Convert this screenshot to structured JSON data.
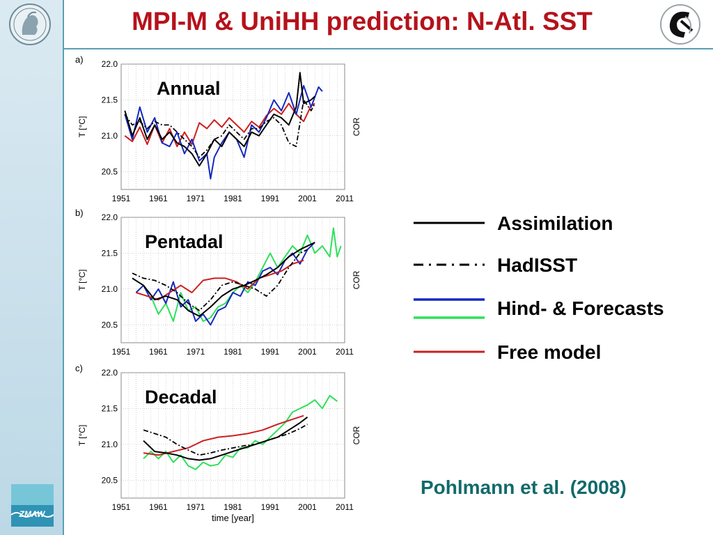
{
  "slide": {
    "title": "MPI-M & UniHH prediction: N-Atl. SST",
    "citation": "Pohlmann et al. (2008)"
  },
  "legend": [
    {
      "label": "Assimilation",
      "style": "solid",
      "colors": [
        "#000000"
      ]
    },
    {
      "label": "HadISST",
      "style": "dashdot",
      "colors": [
        "#000000"
      ]
    },
    {
      "label": "Hind- & Forecasts",
      "style": "solid",
      "colors": [
        "#1528c0",
        "#2ee05a"
      ]
    },
    {
      "label": "Free model",
      "style": "solid",
      "colors": [
        "#cc1f1f"
      ]
    }
  ],
  "logos": {
    "left": "mpg-minerva-logo",
    "right": "institute-logo",
    "bottom": "zmaw-logo",
    "bottom_text": "ZMAW"
  },
  "chart_data": [
    {
      "type": "line",
      "panel": "a)",
      "title": "Annual",
      "xlabel": "",
      "ylabel": "T [°C]",
      "y2label": "COR",
      "xlim": [
        1951,
        2011
      ],
      "ylim": [
        20.25,
        22.0
      ],
      "xticks": [
        "1951",
        "1961",
        "1971",
        "1981",
        "1991",
        "2001",
        "2011"
      ],
      "yticks": [
        "22.0",
        "21.5",
        "21.0",
        "20.5"
      ],
      "series": [
        {
          "name": "Free model",
          "color": "#cc1f1f",
          "style": "solid",
          "x": [
            1952,
            1954,
            1956,
            1958,
            1960,
            1962,
            1964,
            1966,
            1968,
            1970,
            1972,
            1974,
            1976,
            1978,
            1980,
            1982,
            1984,
            1986,
            1988,
            1990,
            1992,
            1994,
            1996,
            1998,
            2000,
            2002,
            2003
          ],
          "y": [
            21.0,
            20.92,
            21.12,
            20.88,
            21.15,
            20.9,
            21.1,
            20.85,
            21.05,
            20.88,
            21.18,
            21.1,
            21.22,
            21.12,
            21.25,
            21.15,
            21.05,
            21.2,
            21.12,
            21.28,
            21.38,
            21.3,
            21.45,
            21.3,
            21.2,
            21.42,
            21.45
          ]
        },
        {
          "name": "Hindcast",
          "color": "#1528c0",
          "style": "solid",
          "x": [
            1952,
            1954,
            1956,
            1958,
            1960,
            1962,
            1964,
            1966,
            1968,
            1970,
            1972,
            1974,
            1975,
            1976,
            1978,
            1980,
            1982,
            1984,
            1986,
            1988,
            1990,
            1992,
            1994,
            1996,
            1998,
            2000,
            2002,
            2004,
            2005
          ],
          "y": [
            21.3,
            20.95,
            21.4,
            21.05,
            21.25,
            20.9,
            20.85,
            21.05,
            20.75,
            20.95,
            20.65,
            20.75,
            20.4,
            20.7,
            20.9,
            21.05,
            20.95,
            20.7,
            21.15,
            21.05,
            21.25,
            21.5,
            21.35,
            21.6,
            21.3,
            21.7,
            21.4,
            21.68,
            21.62
          ]
        },
        {
          "name": "Assimilation",
          "color": "#000000",
          "style": "solid",
          "x": [
            1952,
            1954,
            1956,
            1958,
            1960,
            1962,
            1964,
            1966,
            1968,
            1970,
            1972,
            1974,
            1976,
            1978,
            1980,
            1982,
            1984,
            1986,
            1988,
            1990,
            1992,
            1994,
            1996,
            1998,
            1999,
            2000,
            2002,
            2003
          ],
          "y": [
            21.35,
            21.0,
            21.25,
            20.95,
            21.15,
            20.95,
            21.05,
            20.9,
            20.85,
            20.75,
            20.58,
            20.75,
            20.95,
            20.85,
            21.05,
            20.95,
            20.85,
            21.05,
            21.0,
            21.15,
            21.3,
            21.25,
            21.15,
            21.4,
            21.88,
            21.45,
            21.5,
            21.55
          ]
        },
        {
          "name": "HadISST",
          "color": "#000000",
          "style": "dashdot",
          "x": [
            1952,
            1954,
            1956,
            1958,
            1960,
            1962,
            1964,
            1966,
            1968,
            1970,
            1972,
            1974,
            1976,
            1978,
            1980,
            1982,
            1984,
            1986,
            1988,
            1990,
            1992,
            1994,
            1996,
            1998,
            2000,
            2002,
            2003
          ],
          "y": [
            21.3,
            21.15,
            21.2,
            21.1,
            21.2,
            21.15,
            21.15,
            21.05,
            20.95,
            20.85,
            20.7,
            20.8,
            20.95,
            21.0,
            21.15,
            21.05,
            20.95,
            21.1,
            21.1,
            21.2,
            21.25,
            21.15,
            20.9,
            20.85,
            21.5,
            21.35,
            21.45
          ]
        }
      ]
    },
    {
      "type": "line",
      "panel": "b)",
      "title": "Pentadal",
      "xlabel": "",
      "ylabel": "T [°C]",
      "y2label": "COR",
      "xlim": [
        1951,
        2011
      ],
      "ylim": [
        20.25,
        22.0
      ],
      "xticks": [
        "1951",
        "1961",
        "1971",
        "1981",
        "1991",
        "2001",
        "2011"
      ],
      "yticks": [
        "22.0",
        "21.5",
        "21.0",
        "20.5"
      ],
      "series": [
        {
          "name": "Forecast",
          "color": "#2ee05a",
          "style": "solid",
          "x": [
            1959,
            1961,
            1963,
            1965,
            1967,
            1969,
            1971,
            1973,
            1975,
            1977,
            1979,
            1981,
            1983,
            1985,
            1987,
            1989,
            1991,
            1993,
            1995,
            1997,
            1999,
            2001,
            2003,
            2005,
            2007,
            2008,
            2009,
            2010
          ],
          "y": [
            20.9,
            20.65,
            20.8,
            20.55,
            20.95,
            20.7,
            20.75,
            20.55,
            20.6,
            20.75,
            20.8,
            20.95,
            21.05,
            20.95,
            21.1,
            21.3,
            21.5,
            21.3,
            21.45,
            21.6,
            21.5,
            21.75,
            21.5,
            21.6,
            21.45,
            21.85,
            21.45,
            21.6
          ]
        },
        {
          "name": "Hindcast",
          "color": "#1528c0",
          "style": "solid",
          "x": [
            1955,
            1957,
            1959,
            1961,
            1963,
            1965,
            1967,
            1969,
            1971,
            1973,
            1975,
            1977,
            1979,
            1981,
            1983,
            1985,
            1987,
            1989,
            1991,
            1993,
            1995,
            1997,
            1999,
            2001,
            2003
          ],
          "y": [
            20.95,
            21.05,
            20.85,
            21.0,
            20.8,
            21.1,
            20.75,
            20.85,
            20.55,
            20.65,
            20.5,
            20.7,
            20.75,
            20.95,
            20.9,
            21.1,
            21.05,
            21.25,
            21.3,
            21.2,
            21.4,
            21.5,
            21.35,
            21.55,
            21.65
          ]
        },
        {
          "name": "Free model",
          "color": "#cc1f1f",
          "style": "solid",
          "x": [
            1955,
            1958,
            1961,
            1964,
            1967,
            1970,
            1973,
            1976,
            1979,
            1982,
            1985,
            1988,
            1991,
            1994,
            1997,
            2000
          ],
          "y": [
            20.95,
            20.9,
            20.85,
            20.95,
            21.05,
            20.95,
            21.12,
            21.15,
            21.15,
            21.1,
            21.0,
            21.15,
            21.2,
            21.25,
            21.35,
            21.4
          ]
        },
        {
          "name": "Assimilation",
          "color": "#000000",
          "style": "solid",
          "x": [
            1954,
            1957,
            1960,
            1963,
            1966,
            1969,
            1972,
            1975,
            1978,
            1981,
            1984,
            1987,
            1990,
            1993,
            1996,
            1999,
            2001,
            2003
          ],
          "y": [
            21.15,
            21.05,
            20.85,
            20.9,
            20.85,
            20.7,
            20.62,
            20.75,
            20.9,
            21.0,
            21.05,
            21.12,
            21.2,
            21.3,
            21.45,
            21.55,
            21.6,
            21.65
          ]
        },
        {
          "name": "HadISST",
          "color": "#000000",
          "style": "dashdot",
          "x": [
            1954,
            1957,
            1960,
            1963,
            1966,
            1969,
            1972,
            1975,
            1978,
            1981,
            1984,
            1987,
            1990,
            1993,
            1996,
            1999,
            2001
          ],
          "y": [
            21.22,
            21.15,
            21.12,
            21.05,
            20.95,
            20.8,
            20.7,
            20.85,
            21.05,
            21.1,
            21.05,
            21.0,
            20.9,
            21.05,
            21.3,
            21.5,
            21.55
          ]
        }
      ]
    },
    {
      "type": "line",
      "panel": "c)",
      "title": "Decadal",
      "xlabel": "time [year]",
      "ylabel": "T [°C]",
      "y2label": "COR",
      "xlim": [
        1951,
        2011
      ],
      "ylim": [
        20.25,
        22.0
      ],
      "xticks": [
        "1951",
        "1961",
        "1971",
        "1981",
        "1991",
        "2001",
        "2011"
      ],
      "yticks": [
        "22.0",
        "21.5",
        "21.0",
        "20.5"
      ],
      "series": [
        {
          "name": "Forecast",
          "color": "#2ee05a",
          "style": "solid",
          "x": [
            1957,
            1959,
            1961,
            1963,
            1965,
            1967,
            1969,
            1971,
            1973,
            1975,
            1977,
            1979,
            1981,
            1983,
            1985,
            1987,
            1989,
            1991,
            1993,
            1995,
            1997,
            1999,
            2001,
            2003,
            2005,
            2007,
            2009
          ],
          "y": [
            20.8,
            20.9,
            20.8,
            20.9,
            20.75,
            20.85,
            20.7,
            20.65,
            20.75,
            20.7,
            20.72,
            20.85,
            20.82,
            20.95,
            20.95,
            21.05,
            21.0,
            21.1,
            21.2,
            21.3,
            21.45,
            21.5,
            21.55,
            21.62,
            21.5,
            21.68,
            21.6
          ]
        },
        {
          "name": "Free model",
          "color": "#cc1f1f",
          "style": "solid",
          "x": [
            1957,
            1961,
            1965,
            1969,
            1973,
            1977,
            1981,
            1985,
            1989,
            1993,
            1997,
            2000
          ],
          "y": [
            20.88,
            20.85,
            20.9,
            20.95,
            21.05,
            21.1,
            21.12,
            21.15,
            21.2,
            21.28,
            21.35,
            21.4
          ]
        },
        {
          "name": "Assimilation",
          "color": "#000000",
          "style": "solid",
          "x": [
            1957,
            1960,
            1963,
            1966,
            1969,
            1972,
            1975,
            1978,
            1981,
            1984,
            1987,
            1990,
            1993,
            1996,
            1999,
            2001
          ],
          "y": [
            21.05,
            20.9,
            20.88,
            20.85,
            20.8,
            20.78,
            20.8,
            20.85,
            20.9,
            20.95,
            21.0,
            21.05,
            21.1,
            21.2,
            21.3,
            21.38
          ]
        },
        {
          "name": "HadISST",
          "color": "#000000",
          "style": "dashdot",
          "x": [
            1957,
            1960,
            1963,
            1966,
            1969,
            1972,
            1975,
            1978,
            1981,
            1984,
            1987,
            1990,
            1993,
            1996,
            1999,
            2001
          ],
          "y": [
            21.2,
            21.15,
            21.1,
            21.0,
            20.92,
            20.85,
            20.88,
            20.92,
            20.95,
            20.98,
            21.0,
            21.05,
            21.1,
            21.15,
            21.22,
            21.28
          ]
        }
      ]
    }
  ]
}
